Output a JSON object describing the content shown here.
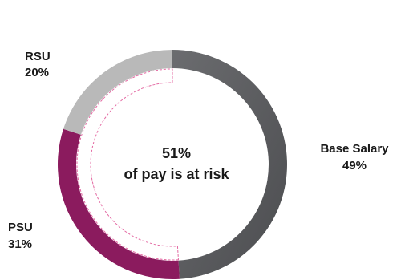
{
  "chart_data": {
    "type": "pie",
    "variant": "donut",
    "title": "",
    "center_text": {
      "line1": "51%",
      "line2": "of pay is at risk"
    },
    "slices": [
      {
        "name": "Base Salary",
        "value": 49,
        "value_label": "49%",
        "color": "#5a5b5e"
      },
      {
        "name": "PSU",
        "value": 31,
        "value_label": "31%",
        "color": "#8b1b5e"
      },
      {
        "name": "RSU",
        "value": 20,
        "value_label": "20%",
        "color": "#b9b9b9"
      }
    ],
    "at_risk_outline_color": "#e46aa3"
  }
}
